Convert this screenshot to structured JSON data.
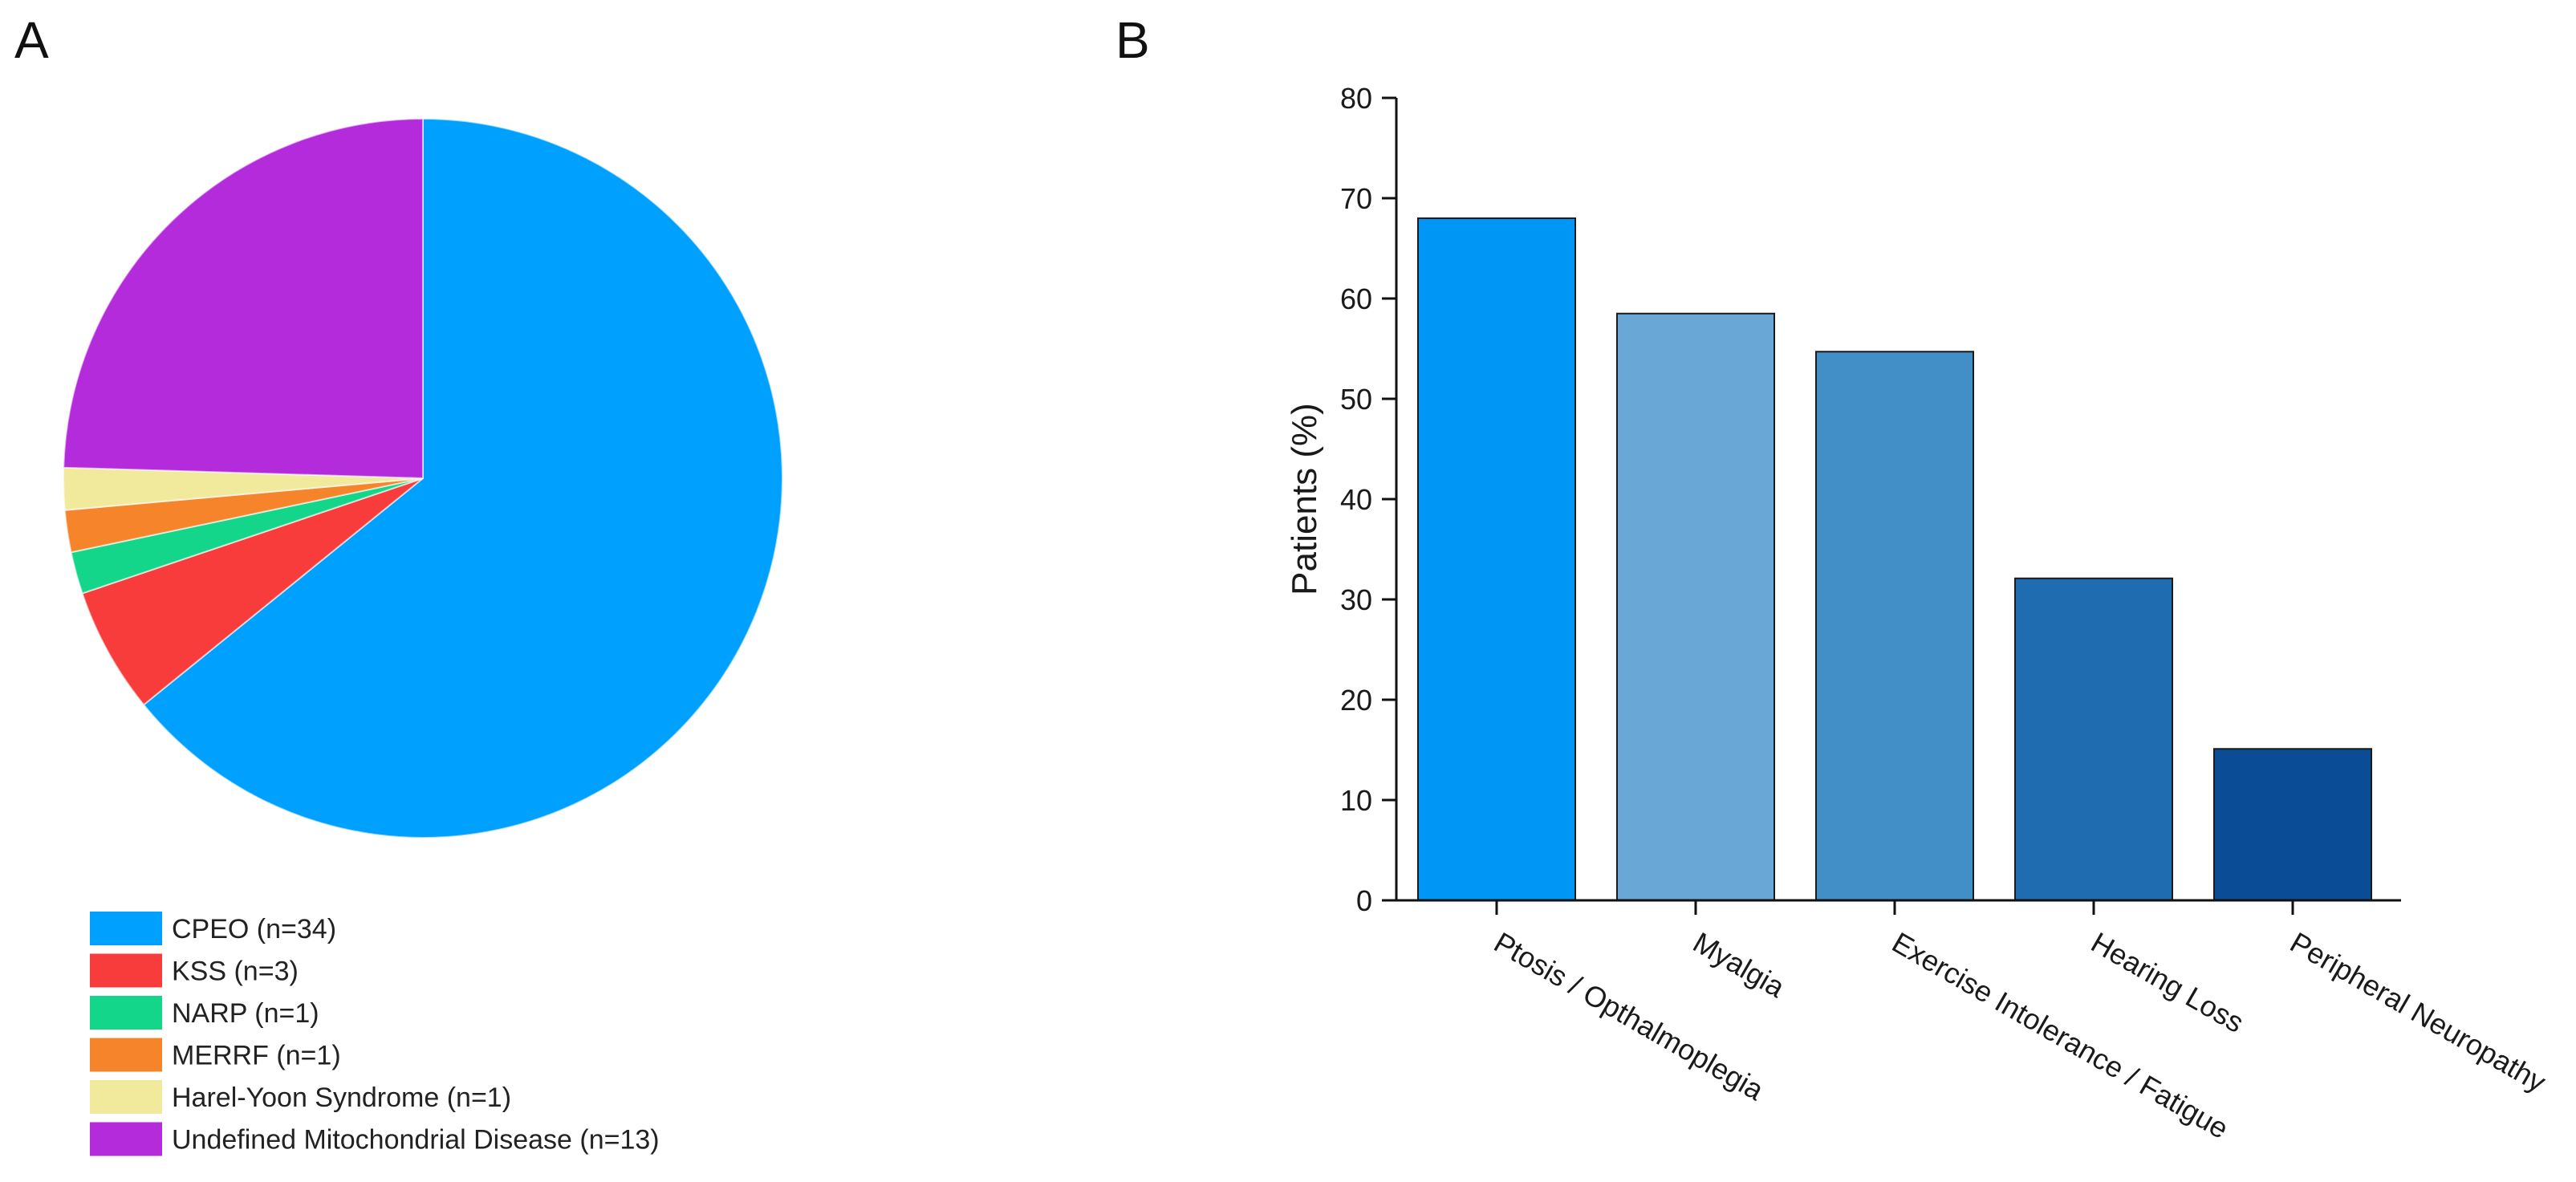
{
  "panels": {
    "a_label": "A",
    "b_label": "B"
  },
  "chart_data": [
    {
      "type": "pie",
      "panel": "A",
      "title": "",
      "start_angle": "12 o'clock, clockwise",
      "slices": [
        {
          "label": "CPEO (n=34)",
          "value": 34,
          "color": "#00A0FF"
        },
        {
          "label": "KSS (n=3)",
          "value": 3,
          "color": "#F83B3B"
        },
        {
          "label": "NARP (n=1)",
          "value": 1,
          "color": "#14D68A"
        },
        {
          "label": "MERRF (n=1)",
          "value": 1,
          "color": "#F5842B"
        },
        {
          "label": "Harel-Yoon Syndrome (n=1)",
          "value": 1,
          "color": "#F1EA9C"
        },
        {
          "label": "Undefined Mitochondrial Disease (n=13)",
          "value": 13,
          "color": "#B32BDB"
        }
      ],
      "legend_position": "bottom-left"
    },
    {
      "type": "bar",
      "panel": "B",
      "title": "",
      "xlabel": "",
      "ylabel": "Patients (%)",
      "ylim": [
        0,
        80
      ],
      "yticks": [
        0,
        10,
        20,
        30,
        40,
        50,
        60,
        70,
        80
      ],
      "grid": false,
      "categories": [
        "Ptosis / Opthalmoplegia",
        "Myalgia",
        "Exercise Intolerance / Fatigue",
        "Hearing Loss",
        "Peripheral Neuropathy"
      ],
      "values": [
        68,
        58.5,
        54.7,
        32.1,
        15.1
      ],
      "colors": [
        "#0096F5",
        "#69A8D6",
        "#418FC6",
        "#1F6CB1",
        "#0B4C97"
      ]
    }
  ]
}
